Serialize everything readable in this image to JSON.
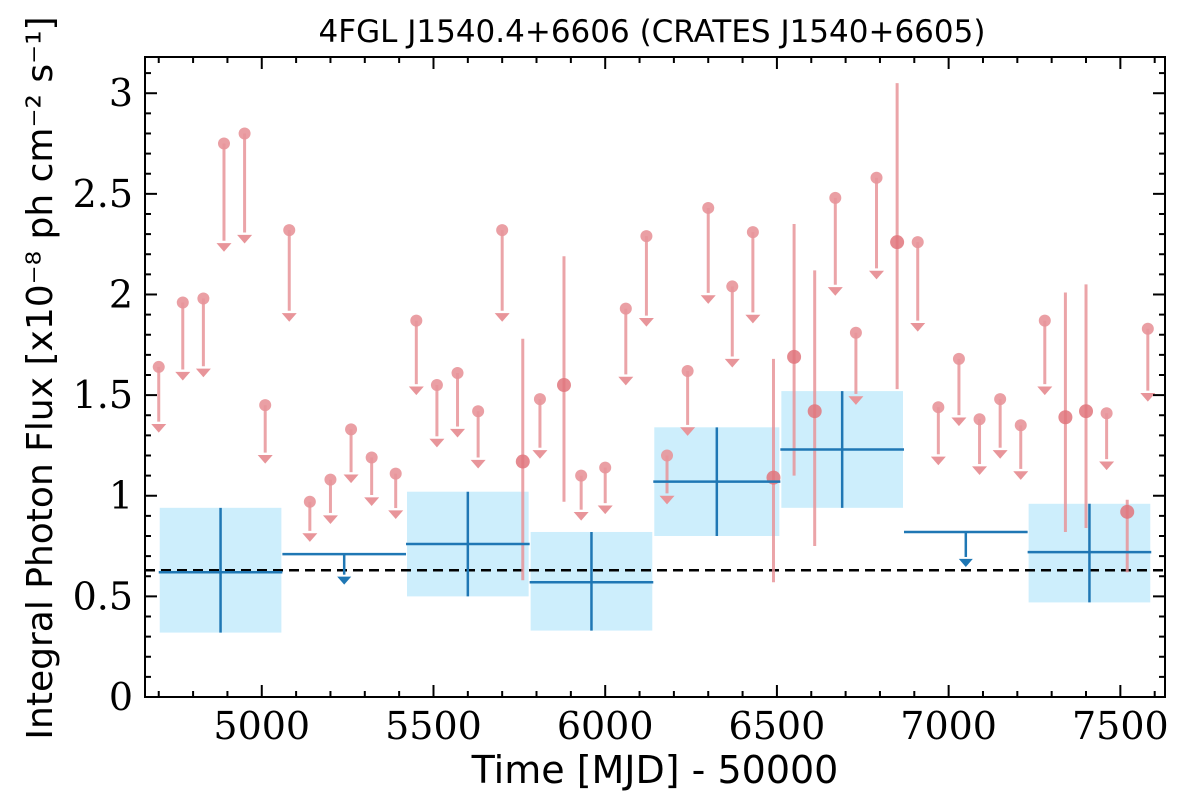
{
  "chart_data": {
    "type": "scatter",
    "title": "4FGL J1540.4+6606 (CRATES J1540+6605)",
    "xlabel": "Time [MJD] - 50000",
    "ylabel": "Integral Photon Flux [x10⁻⁸ ph cm⁻² s⁻¹]",
    "xlim": [
      4660,
      7630
    ],
    "ylim": [
      0,
      3.18
    ],
    "xticks": [
      5000,
      5500,
      6000,
      6500,
      7000,
      7500
    ],
    "xtick_labels": [
      "5000",
      "5500",
      "6000",
      "6500",
      "7000",
      "7500"
    ],
    "yticks": [
      0,
      0.5,
      1,
      1.5,
      2,
      2.5,
      3
    ],
    "ytick_labels": [
      "0",
      "0.5",
      "1",
      "1.5",
      "2",
      "2.5",
      "3"
    ],
    "grid": false,
    "reference_line": {
      "y": 0.63,
      "style": "dashed"
    },
    "colors": {
      "fine_bins": "#e8959a",
      "fine_bins_detection": "#e0757c",
      "coarse_bins": "#1f77b4",
      "coarse_band": "#cdeefc",
      "reference_line": "#000000"
    },
    "series": [
      {
        "role": "fine-bins",
        "upper_limits": [
          {
            "x": 4700,
            "y": 1.64
          },
          {
            "x": 4770,
            "y": 1.96
          },
          {
            "x": 4830,
            "y": 1.98
          },
          {
            "x": 4890,
            "y": 2.75
          },
          {
            "x": 4950,
            "y": 2.8
          },
          {
            "x": 5010,
            "y": 1.45
          },
          {
            "x": 5080,
            "y": 2.32
          },
          {
            "x": 5140,
            "y": 0.97
          },
          {
            "x": 5200,
            "y": 1.08
          },
          {
            "x": 5260,
            "y": 1.33
          },
          {
            "x": 5320,
            "y": 1.19
          },
          {
            "x": 5390,
            "y": 1.11
          },
          {
            "x": 5450,
            "y": 1.87
          },
          {
            "x": 5510,
            "y": 1.55
          },
          {
            "x": 5570,
            "y": 1.61
          },
          {
            "x": 5630,
            "y": 1.42
          },
          {
            "x": 5700,
            "y": 2.32
          },
          {
            "x": 5810,
            "y": 1.48
          },
          {
            "x": 5930,
            "y": 1.1
          },
          {
            "x": 6000,
            "y": 1.14
          },
          {
            "x": 6060,
            "y": 1.93
          },
          {
            "x": 6120,
            "y": 2.29
          },
          {
            "x": 6180,
            "y": 1.2
          },
          {
            "x": 6240,
            "y": 1.62
          },
          {
            "x": 6300,
            "y": 2.43
          },
          {
            "x": 6370,
            "y": 2.04
          },
          {
            "x": 6430,
            "y": 2.31
          },
          {
            "x": 6670,
            "y": 2.48
          },
          {
            "x": 6790,
            "y": 2.58
          },
          {
            "x": 6730,
            "y": 1.81
          },
          {
            "x": 6910,
            "y": 2.26
          },
          {
            "x": 6970,
            "y": 1.44
          },
          {
            "x": 7030,
            "y": 1.68
          },
          {
            "x": 7090,
            "y": 1.38
          },
          {
            "x": 7150,
            "y": 1.48
          },
          {
            "x": 7210,
            "y": 1.35
          },
          {
            "x": 7280,
            "y": 1.87
          },
          {
            "x": 7460,
            "y": 1.41
          },
          {
            "x": 7580,
            "y": 1.83
          }
        ],
        "detections": [
          {
            "x": 5760,
            "y": 1.17,
            "ylo": 0.58,
            "yhi": 1.78
          },
          {
            "x": 5880,
            "y": 1.55,
            "ylo": 0.97,
            "yhi": 2.19
          },
          {
            "x": 6490,
            "y": 1.09,
            "ylo": 0.57,
            "yhi": 1.68
          },
          {
            "x": 6550,
            "y": 1.69,
            "ylo": 1.1,
            "yhi": 2.35
          },
          {
            "x": 6610,
            "y": 1.42,
            "ylo": 0.75,
            "yhi": 2.12
          },
          {
            "x": 6850,
            "y": 2.26,
            "ylo": 1.53,
            "yhi": 3.05
          },
          {
            "x": 7340,
            "y": 1.39,
            "ylo": 0.82,
            "yhi": 2.01
          },
          {
            "x": 7400,
            "y": 1.42,
            "ylo": 0.84,
            "yhi": 2.05
          },
          {
            "x": 7520,
            "y": 0.92,
            "ylo": 0.62,
            "yhi": 0.98
          }
        ]
      },
      {
        "role": "coarse-bins",
        "detections": [
          {
            "x0": 4700,
            "x1": 5060,
            "y": 0.62,
            "ylo": 0.32,
            "yhi": 0.94
          },
          {
            "x0": 5420,
            "x1": 5780,
            "y": 0.76,
            "ylo": 0.5,
            "yhi": 1.02
          },
          {
            "x0": 5780,
            "x1": 6140,
            "y": 0.57,
            "ylo": 0.33,
            "yhi": 0.82
          },
          {
            "x0": 6140,
            "x1": 6510,
            "y": 1.07,
            "ylo": 0.8,
            "yhi": 1.34
          },
          {
            "x0": 6510,
            "x1": 6870,
            "y": 1.23,
            "ylo": 0.94,
            "yhi": 1.52
          },
          {
            "x0": 7230,
            "x1": 7590,
            "y": 0.72,
            "ylo": 0.47,
            "yhi": 0.96
          }
        ],
        "upper_limits": [
          {
            "x0": 5060,
            "x1": 5420,
            "y": 0.71
          },
          {
            "x0": 6870,
            "x1": 7230,
            "y": 0.82
          }
        ]
      }
    ]
  }
}
